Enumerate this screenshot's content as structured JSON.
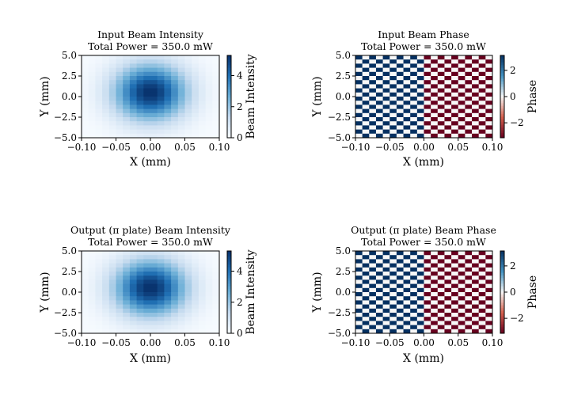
{
  "figure": {
    "panels": [
      {
        "id": "input-intensity",
        "title_lines": [
          "Input Beam  Intensity",
          "Total Power = 350.0 mW"
        ],
        "xlabel": "X (mm)",
        "ylabel": "Y (mm)",
        "colorbar_label": "Beam Intensity",
        "colormap": "Blues"
      },
      {
        "id": "input-phase",
        "title_lines": [
          "Input Beam Phase",
          "Total Power = 350.0 mW"
        ],
        "xlabel": "X (mm)",
        "ylabel": "Y (mm)",
        "colorbar_label": "Phase",
        "colormap": "RdBu"
      },
      {
        "id": "output-intensity",
        "title_lines": [
          "Output (π plate) Beam  Intensity",
          "Total Power = 350.0 mW"
        ],
        "xlabel": "X (mm)",
        "ylabel": "Y (mm)",
        "colorbar_label": "Beam Intensity",
        "colormap": "Blues"
      },
      {
        "id": "output-phase",
        "title_lines": [
          "Output (π plate) Beam Phase",
          "Total Power = 350.0 mW"
        ],
        "xlabel": "X (mm)",
        "ylabel": "Y (mm)",
        "colorbar_label": "Phase",
        "colormap": "RdBu"
      }
    ]
  },
  "chart_data": [
    {
      "type": "heatmap",
      "title": "Input Beam  Intensity\nTotal Power = 350.0 mW",
      "xlabel": "X (mm)",
      "ylabel": "Y (mm)",
      "xlim": [
        -0.1,
        0.1
      ],
      "ylim": [
        -5.0,
        5.0
      ],
      "xticks": [
        "−0.10",
        "−0.05",
        "0.00",
        "0.05",
        "0.10"
      ],
      "yticks": [
        "5.0",
        "2.5",
        "0.0",
        "−2.5",
        "−5.0"
      ],
      "grid_shape": [
        20,
        20
      ],
      "model": "gaussian",
      "center": [
        0.0,
        0.5
      ],
      "sigma": [
        0.037,
        2.4
      ],
      "peak": 5.3,
      "colorbar": {
        "label": "Beam Intensity",
        "range": [
          0,
          5.3
        ],
        "ticks": [
          "0",
          "2",
          "4"
        ]
      },
      "colormap": "Blues",
      "grid": false
    },
    {
      "type": "heatmap",
      "title": "Input Beam Phase\nTotal Power = 350.0 mW",
      "xlabel": "X (mm)",
      "ylabel": "Y (mm)",
      "xlim": [
        -0.1,
        0.1
      ],
      "ylim": [
        -5.0,
        5.0
      ],
      "xticks": [
        "−0.10",
        "−0.05",
        "0.00",
        "0.05",
        "0.10"
      ],
      "yticks": [
        "5.0",
        "2.5",
        "0.0",
        "−2.5",
        "−5.0"
      ],
      "grid_shape": [
        20,
        20
      ],
      "pattern": "checkerboard",
      "values_left_half": [
        3.14,
        0.0
      ],
      "values_right_half": [
        -3.14,
        0.0
      ],
      "colorbar": {
        "label": "Phase",
        "range": [
          -3.14,
          3.14
        ],
        "ticks": [
          "2",
          "0",
          "−2"
        ]
      },
      "colormap": "RdBu",
      "grid": false
    },
    {
      "type": "heatmap",
      "title": "Output (π plate) Beam  Intensity\nTotal Power = 350.0 mW",
      "xlabel": "X (mm)",
      "ylabel": "Y (mm)",
      "xlim": [
        -0.1,
        0.1
      ],
      "ylim": [
        -5.0,
        5.0
      ],
      "xticks": [
        "−0.10",
        "−0.05",
        "0.00",
        "0.05",
        "0.10"
      ],
      "yticks": [
        "5.0",
        "2.5",
        "0.0",
        "−2.5",
        "−5.0"
      ],
      "grid_shape": [
        20,
        20
      ],
      "model": "gaussian",
      "center": [
        0.0,
        0.5
      ],
      "sigma": [
        0.037,
        2.4
      ],
      "peak": 5.3,
      "colorbar": {
        "label": "Beam Intensity",
        "range": [
          0,
          5.3
        ],
        "ticks": [
          "0",
          "2",
          "4"
        ]
      },
      "colormap": "Blues",
      "grid": false
    },
    {
      "type": "heatmap",
      "title": "Output (π plate) Beam Phase\nTotal Power = 350.0 mW",
      "xlabel": "X (mm)",
      "ylabel": "Y (mm)",
      "xlim": [
        -0.1,
        0.1
      ],
      "ylim": [
        -5.0,
        5.0
      ],
      "xticks": [
        "−0.10",
        "−0.05",
        "0.00",
        "0.05",
        "0.10"
      ],
      "yticks": [
        "5.0",
        "2.5",
        "0.0",
        "−2.5",
        "−5.0"
      ],
      "grid_shape": [
        20,
        20
      ],
      "pattern": "checkerboard",
      "values_left_half": [
        3.14,
        0.0
      ],
      "values_right_half": [
        -3.14,
        0.0
      ],
      "colorbar": {
        "label": "Phase",
        "range": [
          -3.14,
          3.14
        ],
        "ticks": [
          "2",
          "0",
          "−2"
        ]
      },
      "colormap": "RdBu",
      "grid": false
    }
  ]
}
